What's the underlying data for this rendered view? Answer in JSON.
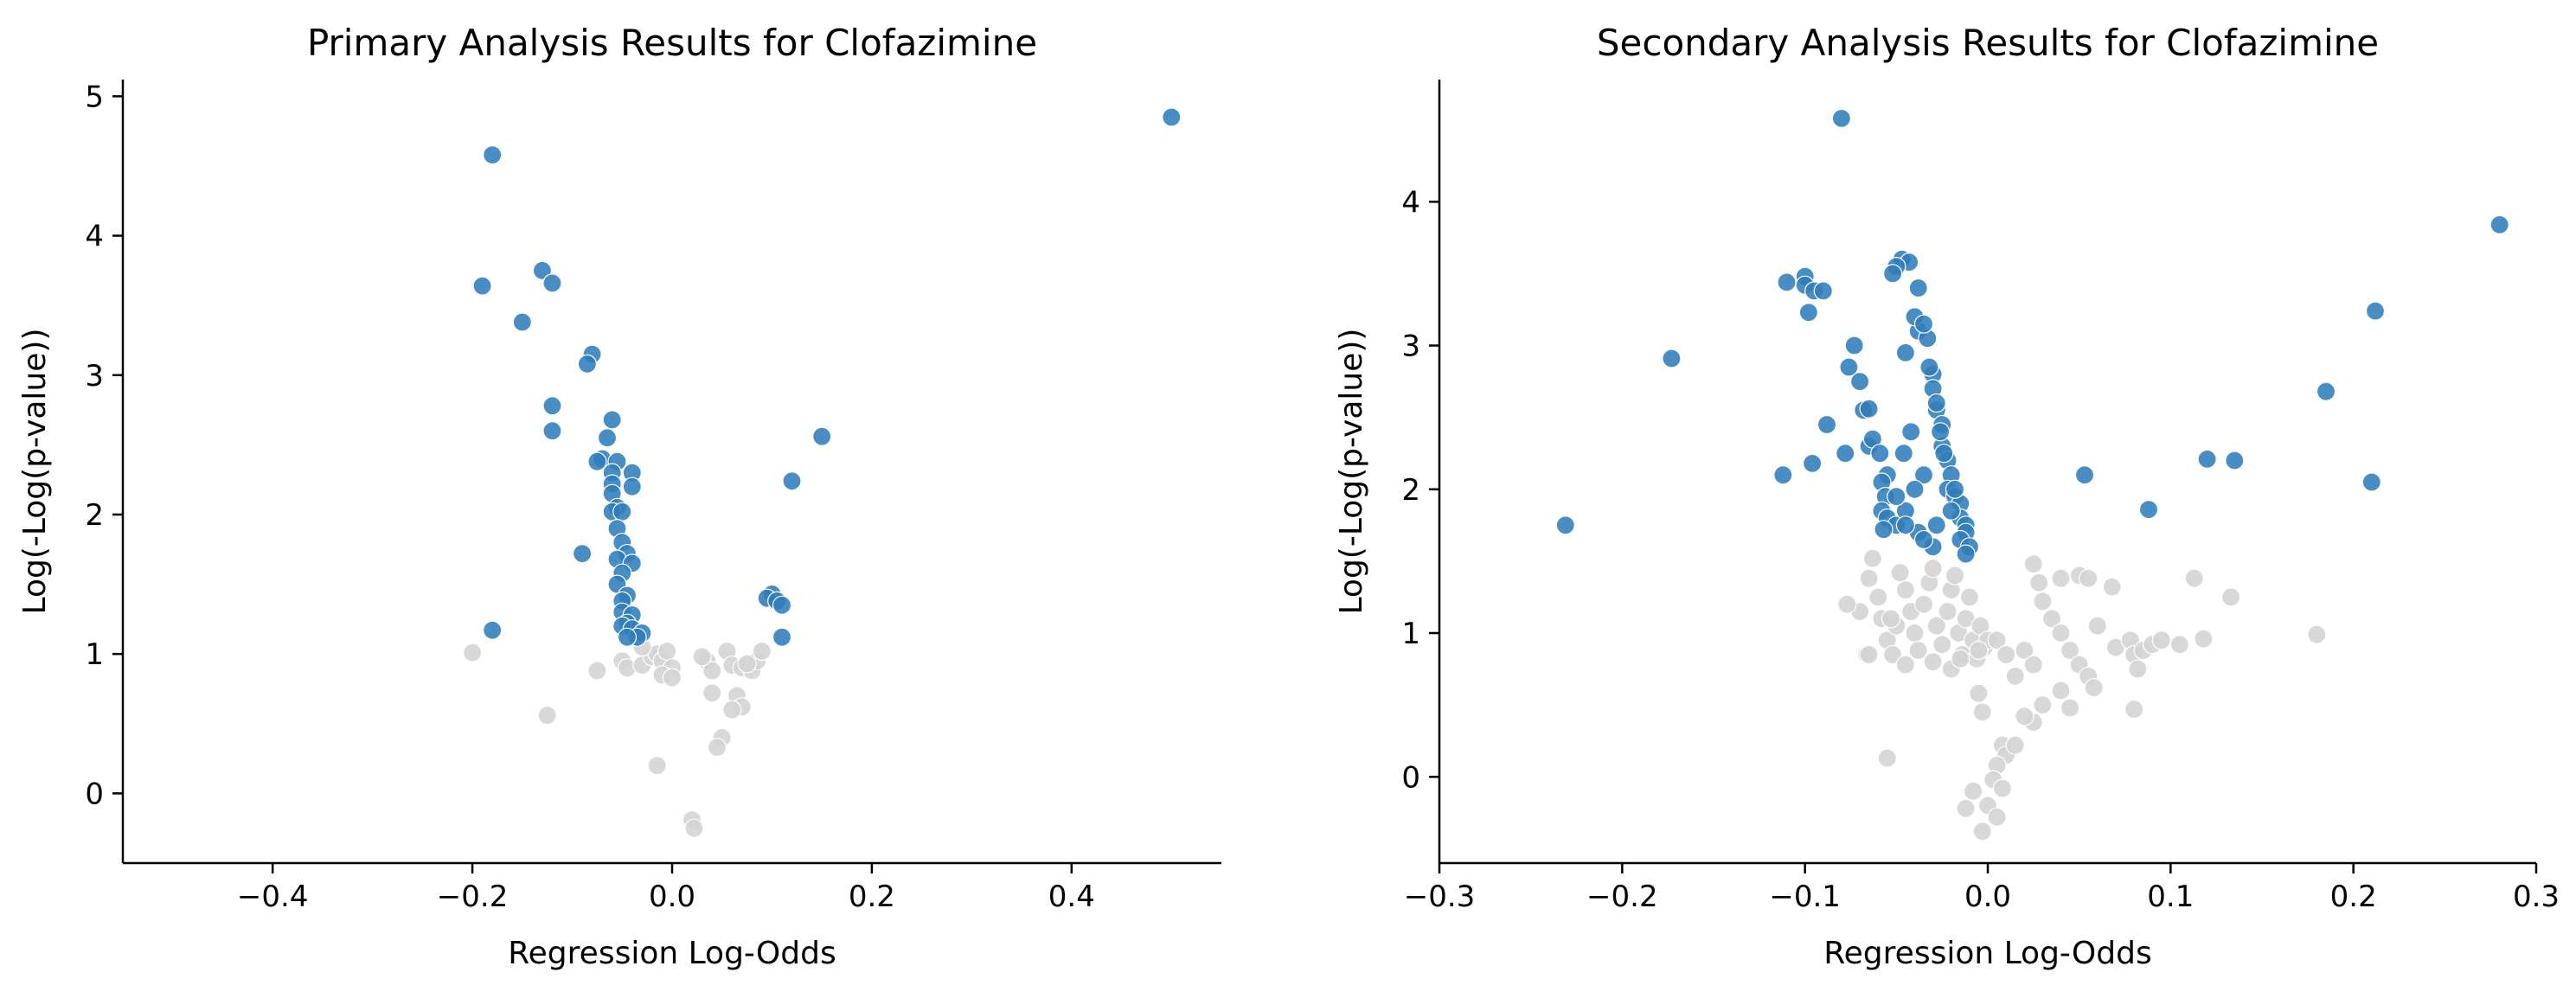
{
  "colors": {
    "significant": "#2f7dbb",
    "nonsignificant": "#d4d4d4",
    "marker_edge": "#ffffff"
  },
  "chart_data": [
    {
      "type": "scatter",
      "title": "Primary Analysis Results for Clofazimine",
      "xlabel": "Regression Log-Odds",
      "ylabel": "Log(-Log(p-value))",
      "xlim": [
        -0.55,
        0.55
      ],
      "ylim": [
        -0.5,
        5.12
      ],
      "xticks": [
        -0.4,
        -0.2,
        0.0,
        0.2,
        0.4
      ],
      "xtick_labels": [
        "−0.4",
        "−0.2",
        "0.0",
        "0.2",
        "0.4"
      ],
      "yticks": [
        0,
        1,
        2,
        3,
        4,
        5
      ],
      "ytick_labels": [
        "0",
        "1",
        "2",
        "3",
        "4",
        "5"
      ],
      "grid": false,
      "series": [
        {
          "role": "significant",
          "points": [
            [
              -0.18,
              4.58
            ],
            [
              -0.19,
              3.64
            ],
            [
              -0.13,
              3.75
            ],
            [
              -0.12,
              3.66
            ],
            [
              -0.15,
              3.38
            ],
            [
              -0.08,
              3.15
            ],
            [
              -0.085,
              3.08
            ],
            [
              -0.12,
              2.78
            ],
            [
              -0.12,
              2.6
            ],
            [
              -0.06,
              2.68
            ],
            [
              -0.065,
              2.55
            ],
            [
              -0.07,
              2.4
            ],
            [
              -0.075,
              2.38
            ],
            [
              -0.055,
              2.38
            ],
            [
              -0.06,
              2.3
            ],
            [
              -0.06,
              2.22
            ],
            [
              -0.06,
              2.15
            ],
            [
              -0.04,
              2.3
            ],
            [
              -0.04,
              2.2
            ],
            [
              -0.055,
              2.05
            ],
            [
              -0.06,
              2.02
            ],
            [
              -0.05,
              2.02
            ],
            [
              -0.055,
              1.9
            ],
            [
              -0.05,
              1.8
            ],
            [
              -0.045,
              1.72
            ],
            [
              -0.09,
              1.72
            ],
            [
              -0.055,
              1.68
            ],
            [
              -0.04,
              1.65
            ],
            [
              -0.05,
              1.58
            ],
            [
              -0.055,
              1.5
            ],
            [
              -0.045,
              1.42
            ],
            [
              -0.05,
              1.38
            ],
            [
              -0.05,
              1.3
            ],
            [
              -0.04,
              1.28
            ],
            [
              -0.045,
              1.22
            ],
            [
              -0.05,
              1.2
            ],
            [
              -0.04,
              1.18
            ],
            [
              -0.03,
              1.15
            ],
            [
              -0.035,
              1.12
            ],
            [
              -0.045,
              1.12
            ],
            [
              0.15,
              2.56
            ],
            [
              0.12,
              2.24
            ],
            [
              0.1,
              1.43
            ],
            [
              0.095,
              1.4
            ],
            [
              0.105,
              1.38
            ],
            [
              0.11,
              1.35
            ],
            [
              0.11,
              1.12
            ],
            [
              -0.18,
              1.17
            ],
            [
              0.5,
              4.85
            ]
          ]
        },
        {
          "role": "nonsignificant",
          "points": [
            [
              -0.2,
              1.01
            ],
            [
              -0.125,
              0.56
            ],
            [
              -0.075,
              0.88
            ],
            [
              -0.05,
              0.95
            ],
            [
              -0.045,
              0.9
            ],
            [
              -0.03,
              0.92
            ],
            [
              -0.02,
              0.98
            ],
            [
              -0.015,
              1.0
            ],
            [
              -0.01,
              0.95
            ],
            [
              -0.005,
              1.02
            ],
            [
              0.0,
              0.9
            ],
            [
              -0.01,
              0.85
            ],
            [
              0.0,
              0.83
            ],
            [
              -0.03,
              1.05
            ],
            [
              0.035,
              0.95
            ],
            [
              0.04,
              0.88
            ],
            [
              0.055,
              1.02
            ],
            [
              0.06,
              0.92
            ],
            [
              0.07,
              0.9
            ],
            [
              0.08,
              0.88
            ],
            [
              0.085,
              0.95
            ],
            [
              0.09,
              1.02
            ],
            [
              0.065,
              0.7
            ],
            [
              0.07,
              0.62
            ],
            [
              0.06,
              0.6
            ],
            [
              0.05,
              0.4
            ],
            [
              0.045,
              0.33
            ],
            [
              0.04,
              0.72
            ],
            [
              -0.015,
              0.2
            ],
            [
              0.02,
              -0.19
            ],
            [
              0.022,
              -0.25
            ],
            [
              0.03,
              0.98
            ],
            [
              0.075,
              0.93
            ]
          ]
        }
      ]
    },
    {
      "type": "scatter",
      "title": "Secondary Analysis Results for Clofazimine",
      "xlabel": "Regression Log-Odds",
      "ylabel": "Log(-Log(p-value))",
      "xlim": [
        -0.3,
        0.3
      ],
      "ylim": [
        -0.6,
        4.85
      ],
      "xticks": [
        -0.3,
        -0.2,
        -0.1,
        0.0,
        0.1,
        0.2,
        0.3
      ],
      "xtick_labels": [
        "−0.3",
        "−0.2",
        "−0.1",
        "0.0",
        "0.1",
        "0.2",
        "0.3"
      ],
      "yticks": [
        0,
        1,
        2,
        3,
        4
      ],
      "ytick_labels": [
        "0",
        "1",
        "2",
        "3",
        "4"
      ],
      "grid": false,
      "series": [
        {
          "role": "significant",
          "points": [
            [
              -0.08,
              4.58
            ],
            [
              -0.1,
              3.48
            ],
            [
              -0.1,
              3.42
            ],
            [
              -0.095,
              3.38
            ],
            [
              -0.11,
              3.44
            ],
            [
              -0.09,
              3.38
            ],
            [
              -0.098,
              3.23
            ],
            [
              -0.073,
              3.0
            ],
            [
              -0.076,
              2.85
            ],
            [
              -0.07,
              2.75
            ],
            [
              -0.068,
              2.55
            ],
            [
              -0.065,
              2.56
            ],
            [
              -0.065,
              2.3
            ],
            [
              -0.063,
              2.35
            ],
            [
              -0.059,
              2.25
            ],
            [
              -0.055,
              2.1
            ],
            [
              -0.058,
              2.05
            ],
            [
              -0.056,
              1.95
            ],
            [
              -0.058,
              1.85
            ],
            [
              -0.055,
              1.8
            ],
            [
              -0.05,
              1.75
            ],
            [
              -0.057,
              1.72
            ],
            [
              -0.047,
              3.6
            ],
            [
              -0.043,
              3.58
            ],
            [
              -0.05,
              3.55
            ],
            [
              -0.052,
              3.5
            ],
            [
              -0.038,
              3.4
            ],
            [
              -0.038,
              3.1
            ],
            [
              -0.033,
              3.05
            ],
            [
              -0.045,
              2.95
            ],
            [
              -0.03,
              2.8
            ],
            [
              -0.03,
              2.7
            ],
            [
              -0.028,
              2.55
            ],
            [
              -0.025,
              2.45
            ],
            [
              -0.025,
              2.3
            ],
            [
              -0.022,
              2.2
            ],
            [
              -0.02,
              2.1
            ],
            [
              -0.022,
              2.0
            ],
            [
              -0.018,
              1.95
            ],
            [
              -0.015,
              1.9
            ],
            [
              -0.015,
              1.8
            ],
            [
              -0.012,
              1.75
            ],
            [
              -0.012,
              1.7
            ],
            [
              -0.015,
              1.65
            ],
            [
              -0.01,
              1.6
            ],
            [
              -0.012,
              1.55
            ],
            [
              -0.04,
              3.2
            ],
            [
              -0.035,
              3.15
            ],
            [
              -0.032,
              2.85
            ],
            [
              -0.028,
              2.6
            ],
            [
              -0.026,
              2.4
            ],
            [
              -0.024,
              2.25
            ],
            [
              -0.035,
              2.1
            ],
            [
              -0.04,
              2.0
            ],
            [
              -0.045,
              1.85
            ],
            [
              -0.038,
              1.7
            ],
            [
              -0.03,
              1.6
            ],
            [
              -0.042,
              2.4
            ],
            [
              -0.046,
              2.25
            ],
            [
              -0.05,
              1.95
            ],
            [
              -0.045,
              1.75
            ],
            [
              -0.035,
              1.65
            ],
            [
              -0.028,
              1.75
            ],
            [
              -0.02,
              1.85
            ],
            [
              -0.018,
              2.0
            ],
            [
              -0.112,
              2.1
            ],
            [
              -0.096,
              2.18
            ],
            [
              -0.088,
              2.45
            ],
            [
              -0.078,
              2.25
            ],
            [
              -0.173,
              2.91
            ],
            [
              -0.231,
              1.75
            ],
            [
              0.053,
              2.1
            ],
            [
              0.088,
              1.86
            ],
            [
              0.12,
              2.21
            ],
            [
              0.135,
              2.2
            ],
            [
              0.185,
              2.68
            ],
            [
              0.212,
              3.24
            ],
            [
              0.21,
              2.05
            ],
            [
              0.28,
              3.84
            ]
          ]
        },
        {
          "role": "nonsignificant",
          "points": [
            [
              -0.07,
              1.15
            ],
            [
              -0.065,
              1.38
            ],
            [
              -0.063,
              1.52
            ],
            [
              -0.06,
              1.25
            ],
            [
              -0.058,
              1.1
            ],
            [
              -0.055,
              0.95
            ],
            [
              -0.052,
              0.85
            ],
            [
              -0.05,
              1.05
            ],
            [
              -0.048,
              1.42
            ],
            [
              -0.045,
              1.3
            ],
            [
              -0.042,
              1.15
            ],
            [
              -0.04,
              1.0
            ],
            [
              -0.038,
              0.88
            ],
            [
              -0.035,
              1.2
            ],
            [
              -0.032,
              1.35
            ],
            [
              -0.03,
              1.45
            ],
            [
              -0.028,
              1.05
            ],
            [
              -0.025,
              0.92
            ],
            [
              -0.022,
              1.15
            ],
            [
              -0.02,
              1.3
            ],
            [
              -0.018,
              1.4
            ],
            [
              -0.016,
              1.0
            ],
            [
              -0.014,
              0.85
            ],
            [
              -0.012,
              1.1
            ],
            [
              -0.01,
              1.25
            ],
            [
              -0.008,
              0.95
            ],
            [
              -0.006,
              0.82
            ],
            [
              -0.004,
              1.05
            ],
            [
              -0.002,
              0.9
            ],
            [
              0.0,
              0.95
            ],
            [
              -0.077,
              1.2
            ],
            [
              -0.066,
              0.85
            ],
            [
              -0.053,
              1.1
            ],
            [
              -0.03,
              0.8
            ],
            [
              -0.02,
              0.75
            ],
            [
              -0.015,
              0.82
            ],
            [
              -0.005,
              0.88
            ],
            [
              0.005,
              0.95
            ],
            [
              0.01,
              0.85
            ],
            [
              0.015,
              0.7
            ],
            [
              0.02,
              0.88
            ],
            [
              0.025,
              0.78
            ],
            [
              0.025,
              1.48
            ],
            [
              0.028,
              1.35
            ],
            [
              0.03,
              1.22
            ],
            [
              0.035,
              1.1
            ],
            [
              0.04,
              1.0
            ],
            [
              0.045,
              0.88
            ],
            [
              0.05,
              0.78
            ],
            [
              0.055,
              0.7
            ],
            [
              0.04,
              1.38
            ],
            [
              0.05,
              1.4
            ],
            [
              0.055,
              1.38
            ],
            [
              0.06,
              1.05
            ],
            [
              0.07,
              0.9
            ],
            [
              0.078,
              0.95
            ],
            [
              0.08,
              0.85
            ],
            [
              0.085,
              0.88
            ],
            [
              0.09,
              0.92
            ],
            [
              0.082,
              0.75
            ],
            [
              0.068,
              1.32
            ],
            [
              0.113,
              1.38
            ],
            [
              0.118,
              0.96
            ],
            [
              0.133,
              1.25
            ],
            [
              0.18,
              0.99
            ],
            [
              0.03,
              0.5
            ],
            [
              0.025,
              0.38
            ],
            [
              0.02,
              0.42
            ],
            [
              0.04,
              0.6
            ],
            [
              0.045,
              0.48
            ],
            [
              0.058,
              0.62
            ],
            [
              0.08,
              0.47
            ],
            [
              -0.005,
              0.58
            ],
            [
              -0.003,
              0.45
            ],
            [
              0.008,
              0.22
            ],
            [
              0.01,
              0.15
            ],
            [
              0.015,
              0.22
            ],
            [
              0.005,
              0.08
            ],
            [
              0.003,
              -0.02
            ],
            [
              0.008,
              -0.08
            ],
            [
              0.0,
              -0.2
            ],
            [
              -0.008,
              -0.1
            ],
            [
              -0.012,
              -0.22
            ],
            [
              0.005,
              -0.28
            ],
            [
              -0.003,
              -0.38
            ],
            [
              -0.055,
              0.13
            ],
            [
              -0.065,
              0.85
            ],
            [
              -0.045,
              0.78
            ],
            [
              0.095,
              0.95
            ],
            [
              0.105,
              0.92
            ]
          ]
        }
      ]
    }
  ]
}
